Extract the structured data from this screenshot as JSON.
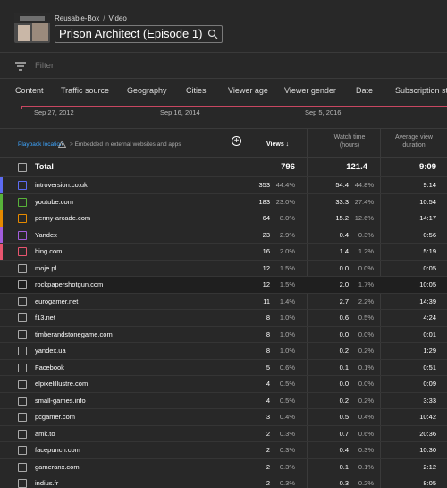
{
  "header": {
    "channel": "Reusable-Box",
    "separator": "/",
    "section": "Video",
    "title": "Prison Architect (Episode 1)"
  },
  "filter": {
    "placeholder": "Filter"
  },
  "tabs": [
    "Content",
    "Traffic source",
    "Geography",
    "Cities",
    "Viewer age",
    "Viewer gender",
    "Date",
    "Subscription st"
  ],
  "timeline": {
    "dates": [
      "Sep 27, 2012",
      "Sep 16, 2014",
      "Sep 5, 2016"
    ],
    "line_color": "#c84761"
  },
  "table": {
    "dimension_label": "Playback location",
    "breadcrumb_rest": "> Embedded in external websites and apps",
    "col_views": "Views",
    "col_watch_line1": "Watch time",
    "col_watch_line2": "(hours)",
    "col_avg_line1": "Average view",
    "col_avg_line2": "duration",
    "total": {
      "label": "Total",
      "views": "796",
      "watch": "121.4",
      "avg": "9:09"
    },
    "rows": [
      {
        "name": "introversion.co.uk",
        "views": "353",
        "views_pct": "44.4%",
        "watch": "54.4",
        "watch_pct": "44.8%",
        "avg": "9:14",
        "color": "#5d6bf2",
        "checkbox": "#5d6bf2"
      },
      {
        "name": "youtube.com",
        "views": "183",
        "views_pct": "23.0%",
        "watch": "33.3",
        "watch_pct": "27.4%",
        "avg": "10:54",
        "color": "#58b33a",
        "checkbox": "#58b33a"
      },
      {
        "name": "penny-arcade.com",
        "views": "64",
        "views_pct": "8.0%",
        "watch": "15.2",
        "watch_pct": "12.6%",
        "avg": "14:17",
        "color": "#e68a00",
        "checkbox": "#e68a00"
      },
      {
        "name": "Yandex",
        "views": "23",
        "views_pct": "2.9%",
        "watch": "0.4",
        "watch_pct": "0.3%",
        "avg": "0:56",
        "color": "#a25ddc",
        "checkbox": "#a25ddc"
      },
      {
        "name": "bing.com",
        "views": "16",
        "views_pct": "2.0%",
        "watch": "1.4",
        "watch_pct": "1.2%",
        "avg": "5:19",
        "color": "#e8556f",
        "checkbox": "#e8556f"
      },
      {
        "name": "moje.pl",
        "views": "12",
        "views_pct": "1.5%",
        "watch": "0.0",
        "watch_pct": "0.0%",
        "avg": "0:05",
        "color": "",
        "checkbox": "#aaaaaa"
      },
      {
        "name": "rockpapershotgun.com",
        "views": "12",
        "views_pct": "1.5%",
        "watch": "2.0",
        "watch_pct": "1.7%",
        "avg": "10:05",
        "color": "",
        "checkbox": "#aaaaaa"
      },
      {
        "name": "eurogamer.net",
        "views": "11",
        "views_pct": "1.4%",
        "watch": "2.7",
        "watch_pct": "2.2%",
        "avg": "14:39",
        "color": "",
        "checkbox": "#aaaaaa"
      },
      {
        "name": "f13.net",
        "views": "8",
        "views_pct": "1.0%",
        "watch": "0.6",
        "watch_pct": "0.5%",
        "avg": "4:24",
        "color": "",
        "checkbox": "#aaaaaa"
      },
      {
        "name": "timberandstonegame.com",
        "views": "8",
        "views_pct": "1.0%",
        "watch": "0.0",
        "watch_pct": "0.0%",
        "avg": "0:01",
        "color": "",
        "checkbox": "#aaaaaa"
      },
      {
        "name": "yandex.ua",
        "views": "8",
        "views_pct": "1.0%",
        "watch": "0.2",
        "watch_pct": "0.2%",
        "avg": "1:29",
        "color": "",
        "checkbox": "#aaaaaa"
      },
      {
        "name": "Facebook",
        "views": "5",
        "views_pct": "0.6%",
        "watch": "0.1",
        "watch_pct": "0.1%",
        "avg": "0:51",
        "color": "",
        "checkbox": "#aaaaaa"
      },
      {
        "name": "elpixelillustre.com",
        "views": "4",
        "views_pct": "0.5%",
        "watch": "0.0",
        "watch_pct": "0.0%",
        "avg": "0:09",
        "color": "",
        "checkbox": "#aaaaaa"
      },
      {
        "name": "small-games.info",
        "views": "4",
        "views_pct": "0.5%",
        "watch": "0.2",
        "watch_pct": "0.2%",
        "avg": "3:33",
        "color": "",
        "checkbox": "#aaaaaa"
      },
      {
        "name": "pcgamer.com",
        "views": "3",
        "views_pct": "0.4%",
        "watch": "0.5",
        "watch_pct": "0.4%",
        "avg": "10:42",
        "color": "",
        "checkbox": "#aaaaaa"
      },
      {
        "name": "amk.to",
        "views": "2",
        "views_pct": "0.3%",
        "watch": "0.7",
        "watch_pct": "0.6%",
        "avg": "20:36",
        "color": "",
        "checkbox": "#aaaaaa"
      },
      {
        "name": "facepunch.com",
        "views": "2",
        "views_pct": "0.3%",
        "watch": "0.4",
        "watch_pct": "0.3%",
        "avg": "10:30",
        "color": "",
        "checkbox": "#aaaaaa"
      },
      {
        "name": "gameranx.com",
        "views": "2",
        "views_pct": "0.3%",
        "watch": "0.1",
        "watch_pct": "0.1%",
        "avg": "2:12",
        "color": "",
        "checkbox": "#aaaaaa"
      },
      {
        "name": "indius.fr",
        "views": "2",
        "views_pct": "0.3%",
        "watch": "0.3",
        "watch_pct": "0.2%",
        "avg": "8:05",
        "color": "",
        "checkbox": "#aaaaaa"
      }
    ]
  }
}
